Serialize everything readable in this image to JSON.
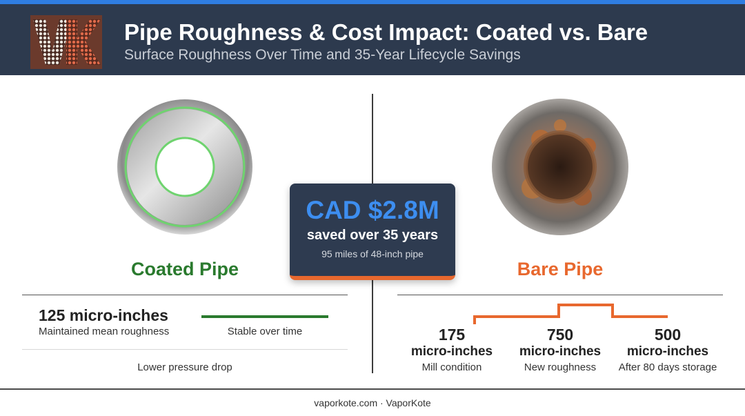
{
  "header": {
    "logo_text": "VK",
    "title": "Pipe Roughness & Cost Impact: Coated vs. Bare",
    "subtitle": "Surface Roughness Over Time and 35-Year Lifecycle Savings"
  },
  "coated": {
    "label": "Coated Pipe",
    "value": "125 micro-inches",
    "value_caption": "Maintained mean roughness",
    "trend_caption": "Stable over time",
    "benefit": "Lower pressure drop",
    "color": "#2a7a2e"
  },
  "savings": {
    "amount": "CAD $2.8M",
    "description": "saved over 35 years",
    "note": "95 miles of 48-inch pipe",
    "amount_color": "#3d8ef0",
    "accent_color": "#e8682e"
  },
  "bare": {
    "label": "Bare Pipe",
    "color": "#e8682e",
    "stages": [
      {
        "value": "175",
        "unit": "micro-inches",
        "caption": "Mill condition"
      },
      {
        "value": "750",
        "unit": "micro-inches",
        "caption": "New roughness"
      },
      {
        "value": "500",
        "unit": "micro-inches",
        "caption": "After 80 days storage"
      }
    ]
  },
  "footer": {
    "text": "vaporkote.com · VaporKote"
  }
}
